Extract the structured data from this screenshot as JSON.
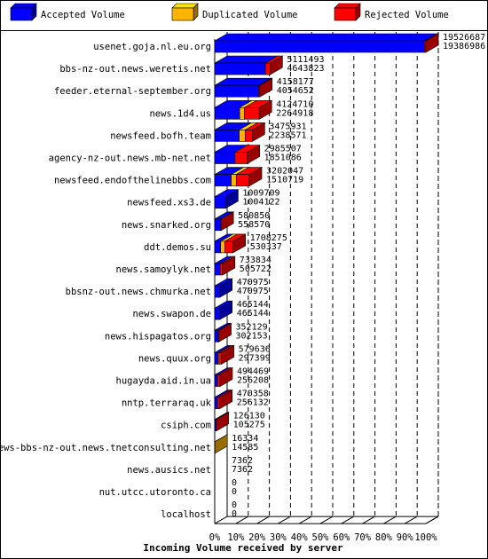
{
  "chart_data": {
    "type": "bar",
    "title": "",
    "xlabel": "Incoming Volume received by server",
    "ylabel": "",
    "xlim": [
      0,
      100
    ],
    "x_ticks": [
      "0%",
      "10%",
      "20%",
      "30%",
      "40%",
      "50%",
      "60%",
      "70%",
      "80%",
      "90%",
      "100%"
    ],
    "legend_position": "top",
    "legend": [
      {
        "name": "Accepted Volume",
        "color": "#0000ff"
      },
      {
        "name": "Duplicated Volume",
        "color": "#ffb400"
      },
      {
        "name": "Rejected Volume",
        "color": "#ff0000"
      }
    ],
    "categories": [
      "usenet.goja.nl.eu.org",
      "bbs-nz-out.news.weretis.net",
      "feeder.eternal-september.org",
      "news.1d4.us",
      "newsfeed.bofh.team",
      "agency-nz-out.news.mb-net.net",
      "newsfeed.endofthelinebbs.com",
      "newsfeed.xs3.de",
      "news.snarked.org",
      "ddt.demos.su",
      "news.samoylyk.net",
      "bbsnz-out.news.chmurka.net",
      "news.swapon.de",
      "news.hispagatos.org",
      "news.quux.org",
      "hugayda.aid.in.ua",
      "nntp.terraraq.uk",
      "csiph.com",
      "news-bbs-nz-out.news.tnetconsulting.net",
      "news.ausics.net",
      "nut.utcc.utoronto.ca",
      "localhost"
    ],
    "total_volume": [
      "19526687",
      "5111493",
      "4158177",
      "4124710",
      "3475931",
      "2985507",
      "3202047",
      "1009709",
      "580850",
      "1708275",
      "733834",
      "470975",
      "465144",
      "352129",
      "579636",
      "494469",
      "470358",
      "126130",
      "16334",
      "7362",
      "0",
      "0"
    ],
    "accepted_volume": [
      "19386986",
      "4643823",
      "4054652",
      "2264918",
      "2238571",
      "1851086",
      "1510719",
      "1004122",
      "558570",
      "530337",
      "505722",
      "470975",
      "465144",
      "302153",
      "297399",
      "256208",
      "256132",
      "105275",
      "14585",
      "7362",
      "0",
      "0"
    ],
    "series": [
      {
        "name": "Accepted Volume",
        "values": [
          99.3,
          24.0,
          20.8,
          11.8,
          11.6,
          9.6,
          7.8,
          5.2,
          2.9,
          2.8,
          2.6,
          2.4,
          2.4,
          1.6,
          1.5,
          1.3,
          1.3,
          0.6,
          0.0,
          0.0,
          0.0,
          0.0
        ]
      },
      {
        "name": "Duplicated Volume",
        "values": [
          0.0,
          0.0,
          0.0,
          2.2,
          2.8,
          0.0,
          2.4,
          0.0,
          0.0,
          2.0,
          0.0,
          0.0,
          0.0,
          0.0,
          0.5,
          0.0,
          0.0,
          0.0,
          0.1,
          0.0,
          0.0,
          0.0
        ]
      },
      {
        "name": "Rejected Volume",
        "values": [
          0.7,
          2.2,
          0.5,
          7.1,
          3.4,
          5.8,
          6.2,
          0.0,
          0.1,
          3.9,
          1.1,
          0.0,
          0.0,
          0.3,
          1.2,
          1.2,
          1.1,
          0.1,
          0.0,
          0.0,
          0.0,
          0.0
        ]
      }
    ]
  }
}
